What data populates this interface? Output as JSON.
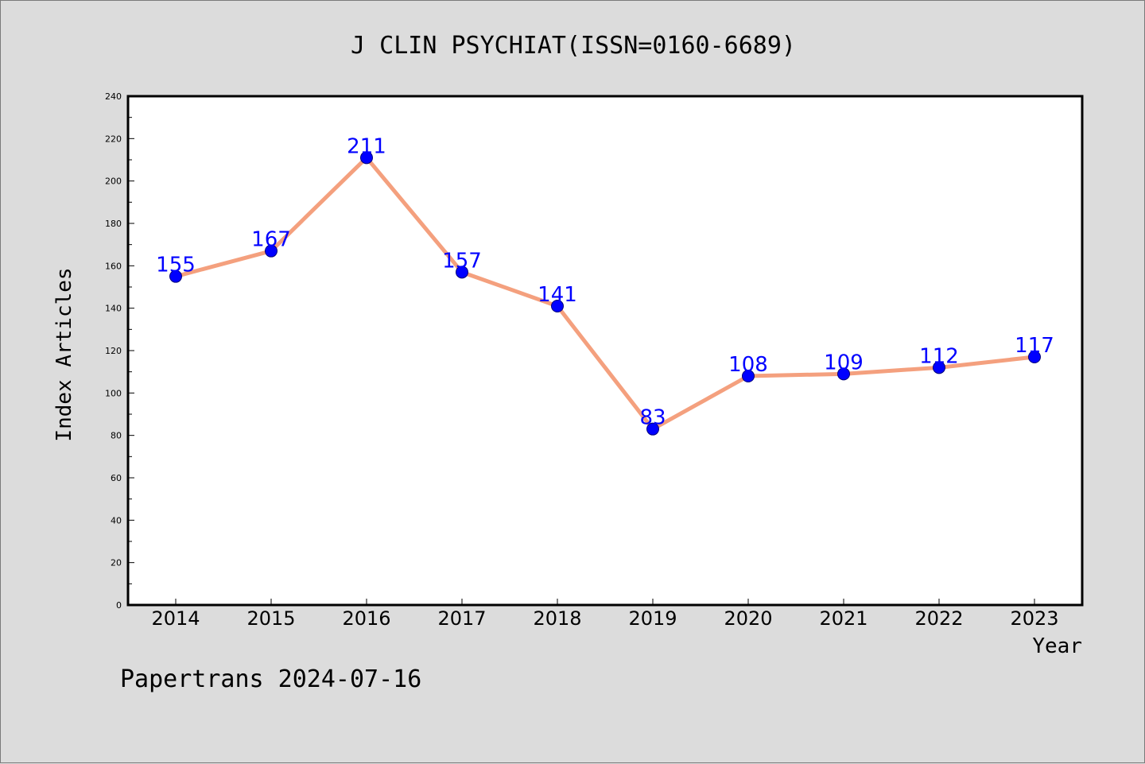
{
  "colors": {
    "background": "#dcdcdc",
    "plot_background": "#ffffff",
    "line": "#f4a07e",
    "marker": "#0000ff",
    "data_label": "#0000ff",
    "axis": "#000000"
  },
  "footer": {
    "text": "Papertrans 2024-07-16"
  },
  "chart_data": {
    "type": "line",
    "title": "J CLIN PSYCHIAT(ISSN=0160-6689)",
    "xlabel": "Year",
    "ylabel": "Index Articles",
    "ylim": [
      0,
      240
    ],
    "y_ticks": [
      0,
      20,
      40,
      60,
      80,
      100,
      120,
      140,
      160,
      180,
      200,
      220,
      240
    ],
    "grid": false,
    "legend": "none",
    "categories": [
      "2014",
      "2015",
      "2016",
      "2017",
      "2018",
      "2019",
      "2020",
      "2021",
      "2022",
      "2023"
    ],
    "series": [
      {
        "values": [
          155,
          167,
          211,
          157,
          141,
          83,
          108,
          109,
          112,
          117
        ]
      }
    ]
  }
}
